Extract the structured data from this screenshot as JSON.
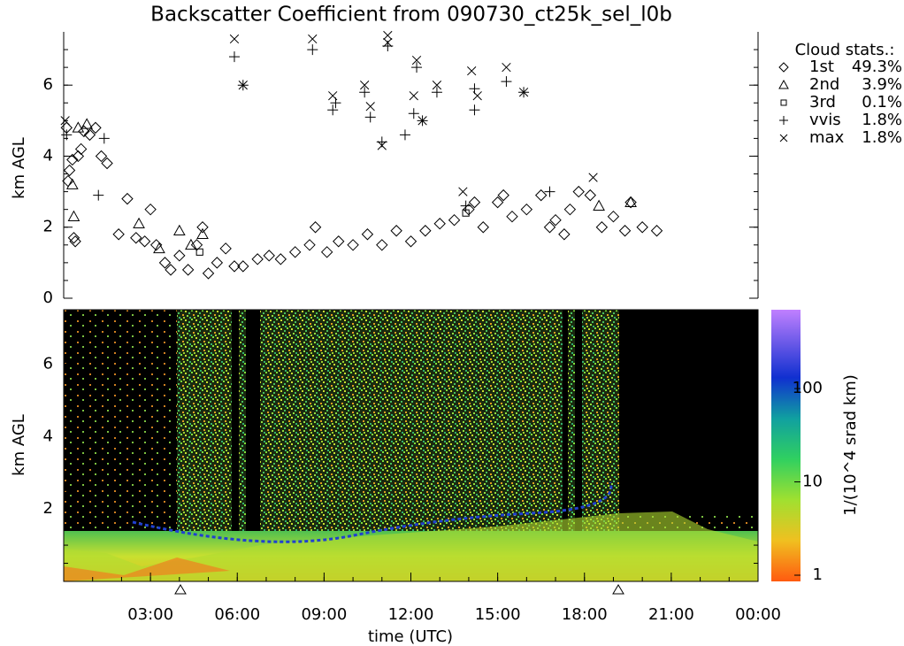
{
  "chart_data": [
    {
      "type": "scatter",
      "title": "Backscatter Coefficient from 090730_ct25k_sel_l0b",
      "ylabel": "km AGL",
      "legend_title": "Cloud stats.:",
      "xlim": [
        0,
        24
      ],
      "ylim": [
        0,
        7.5
      ],
      "yticks": [
        0,
        2,
        4,
        6
      ],
      "series": [
        {
          "name": "1st",
          "marker": "diamond",
          "stat": 49.3,
          "stat_label": "49.3%",
          "x": [
            0.1,
            0.15,
            0.2,
            0.3,
            0.35,
            0.4,
            0.5,
            0.6,
            0.7,
            0.9,
            1.1,
            1.3,
            1.5,
            1.9,
            2.2,
            2.5,
            2.8,
            3.0,
            3.2,
            3.5,
            3.7,
            4.0,
            4.3,
            4.6,
            4.8,
            5.0,
            5.3,
            5.6,
            5.9,
            6.2,
            6.7,
            7.1,
            7.5,
            8.0,
            8.5,
            8.7,
            9.1,
            9.5,
            10.0,
            10.5,
            11.0,
            11.5,
            12.0,
            12.5,
            13.0,
            13.5,
            14.0,
            14.2,
            14.5,
            15.0,
            15.2,
            15.5,
            16.0,
            16.5,
            16.8,
            17.0,
            17.3,
            17.5,
            17.8,
            18.2,
            18.6,
            19.0,
            19.4,
            19.6,
            20.0,
            20.5
          ],
          "y": [
            4.8,
            3.3,
            3.6,
            3.9,
            1.7,
            1.6,
            4.0,
            4.2,
            4.7,
            4.6,
            4.8,
            4.0,
            3.8,
            1.8,
            2.8,
            1.7,
            1.6,
            2.5,
            1.5,
            1.0,
            0.8,
            1.2,
            0.8,
            1.5,
            2.0,
            0.7,
            1.0,
            1.4,
            0.9,
            0.9,
            1.1,
            1.2,
            1.1,
            1.3,
            1.5,
            2.0,
            1.3,
            1.6,
            1.5,
            1.8,
            1.5,
            1.9,
            1.6,
            1.9,
            2.1,
            2.2,
            2.5,
            2.7,
            2.0,
            2.7,
            2.9,
            2.3,
            2.5,
            2.9,
            2.0,
            2.2,
            1.8,
            2.5,
            3.0,
            2.9,
            2.0,
            2.3,
            1.9,
            2.7,
            2.0,
            1.9
          ]
        },
        {
          "name": "2nd",
          "marker": "triangle",
          "stat": 3.9,
          "stat_label": "3.9%",
          "x": [
            0.3,
            0.35,
            0.5,
            0.8,
            2.6,
            3.3,
            4.0,
            4.4,
            4.8,
            18.5,
            19.6
          ],
          "y": [
            3.2,
            2.3,
            4.8,
            4.9,
            2.1,
            1.4,
            1.9,
            1.5,
            1.8,
            2.6,
            2.7
          ]
        },
        {
          "name": "3rd",
          "marker": "square",
          "stat": 0.1,
          "stat_label": "0.1%",
          "x": [
            4.7,
            13.9
          ],
          "y": [
            1.3,
            2.4
          ]
        },
        {
          "name": "vvis",
          "marker": "plus",
          "stat": 1.8,
          "stat_label": "1.8%",
          "x": [
            0.1,
            1.2,
            1.4,
            5.9,
            6.2,
            8.6,
            9.3,
            9.4,
            10.4,
            10.6,
            11.0,
            11.2,
            11.8,
            12.1,
            12.2,
            12.4,
            12.9,
            13.9,
            14.2,
            14.2,
            15.3,
            15.9,
            16.8
          ],
          "y": [
            4.6,
            2.9,
            4.5,
            6.8,
            6.0,
            7.0,
            5.3,
            5.5,
            5.8,
            5.1,
            4.4,
            7.1,
            4.6,
            5.2,
            6.5,
            5.0,
            5.8,
            2.6,
            5.9,
            5.3,
            6.1,
            5.8,
            3.0
          ]
        },
        {
          "name": "max",
          "marker": "cross",
          "stat": 1.8,
          "stat_label": "1.8%",
          "x": [
            0.05,
            5.9,
            6.2,
            8.6,
            9.3,
            10.4,
            10.6,
            11.0,
            11.2,
            11.2,
            12.1,
            12.2,
            12.4,
            12.9,
            13.8,
            14.1,
            14.3,
            15.3,
            15.9,
            18.3
          ],
          "y": [
            5.0,
            7.3,
            6.0,
            7.3,
            5.7,
            6.0,
            5.4,
            4.3,
            7.4,
            7.2,
            5.7,
            6.7,
            5.0,
            6.0,
            3.0,
            6.4,
            5.7,
            6.5,
            5.8,
            3.4
          ]
        }
      ]
    },
    {
      "type": "heatmap",
      "ylabel": "km AGL",
      "xlabel": "time (UTC)",
      "xlim": [
        0,
        24
      ],
      "xticks": [
        {
          "value": 3,
          "label": "03:00"
        },
        {
          "value": 6,
          "label": "06:00"
        },
        {
          "value": 9,
          "label": "09:00"
        },
        {
          "value": 12,
          "label": "12:00"
        },
        {
          "value": 15,
          "label": "15:00"
        },
        {
          "value": 18,
          "label": "18:00"
        },
        {
          "value": 21,
          "label": "21:00"
        },
        {
          "value": 24,
          "label": "00:00"
        }
      ],
      "ylim": [
        0,
        7.5
      ],
      "yticks": [
        2,
        4,
        6
      ],
      "colorbar_label": "1/(10^4 srad km)",
      "clim": [
        1,
        700
      ],
      "cticks": [
        1,
        10,
        100
      ],
      "log_color": true
    }
  ]
}
